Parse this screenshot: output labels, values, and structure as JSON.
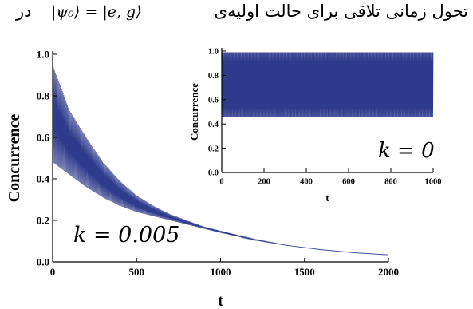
{
  "caption": {
    "text_fa": "تحول زمانی تلاقی برای حالت اولیه‌ی",
    "formula": "|ψ₀⟩ = |e, g⟩",
    "text_fa_end": "در"
  },
  "colors": {
    "series": "#2e3a8c",
    "axis": "#000000"
  },
  "chart_data": [
    {
      "type": "line",
      "xlabel": "t",
      "ylabel": "Concurrence",
      "xlim": [
        0,
        2000
      ],
      "ylim": [
        0,
        1.0
      ],
      "xticks": [
        "0",
        "500",
        "1000",
        "1500",
        "2000"
      ],
      "yticks": [
        "0.0",
        "0.2",
        "0.4",
        "0.6",
        "0.8",
        "1.0"
      ],
      "annotation": "k = 0.005",
      "envelope": {
        "x": [
          0,
          100,
          200,
          300,
          400,
          500,
          600,
          700,
          800,
          900,
          1000,
          1200,
          1400,
          1600,
          1800,
          2000
        ],
        "upper": [
          0.95,
          0.73,
          0.6,
          0.48,
          0.39,
          0.32,
          0.27,
          0.23,
          0.2,
          0.17,
          0.15,
          0.11,
          0.08,
          0.06,
          0.045,
          0.035
        ],
        "lower": [
          0.48,
          0.42,
          0.36,
          0.31,
          0.27,
          0.24,
          0.22,
          0.2,
          0.18,
          0.16,
          0.14,
          0.105,
          0.078,
          0.058,
          0.043,
          0.033
        ]
      }
    },
    {
      "type": "line",
      "xlabel": "t",
      "ylabel": "Concurrence",
      "xlim": [
        0,
        1000
      ],
      "ylim": [
        0,
        1.0
      ],
      "xticks": [
        "0",
        "200",
        "400",
        "600",
        "800",
        "1000"
      ],
      "yticks": [
        "0.0",
        "0.2",
        "0.4",
        "0.6",
        "0.8",
        "1.0"
      ],
      "annotation": "k = 0",
      "envelope": {
        "x": [
          0,
          1000
        ],
        "upper": [
          0.99,
          0.99
        ],
        "lower": [
          0.46,
          0.46
        ]
      }
    }
  ]
}
